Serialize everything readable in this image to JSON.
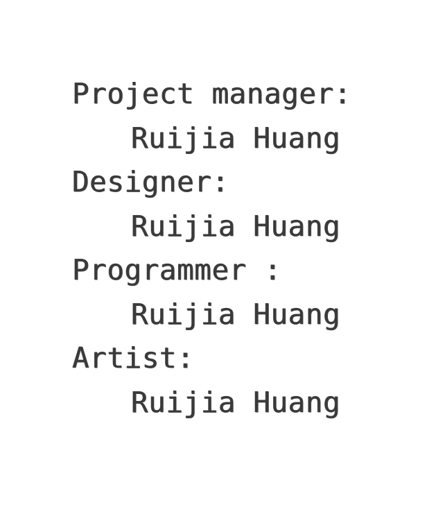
{
  "credits": [
    {
      "role": "Project manager:",
      "name": "Ruijia Huang"
    },
    {
      "role": "Designer:",
      "name": "Ruijia Huang"
    },
    {
      "role": "Programmer :",
      "name": "Ruijia Huang"
    },
    {
      "role": "Artist:",
      "name": "Ruijia Huang"
    }
  ],
  "colors": {
    "text": "#3a3a3a",
    "background": "#ffffff"
  }
}
